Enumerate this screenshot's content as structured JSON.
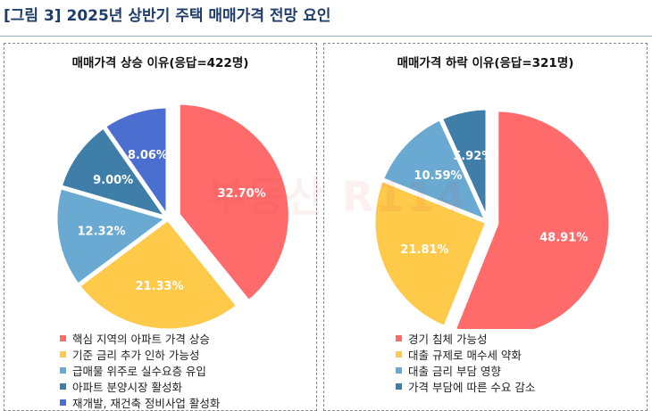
{
  "figure_title": "[그림 3] 2025년 상반기 주택 매매가격 전망 요인",
  "watermark_text": "부동산 R114",
  "chart_data": [
    {
      "type": "pie",
      "title": "매매가격 상승 이유(응답=422명)",
      "labels": [
        "핵심 지역의 아파트 가격 상승",
        "기준 금리 추가 인하 가능성",
        "급매물 위주로 실수요층 유입",
        "아파트 분양시장 활성화",
        "재개발, 재건축 정비사업 활성화"
      ],
      "values": [
        32.7,
        21.33,
        12.32,
        9.0,
        8.06
      ],
      "value_labels": [
        "32.70%",
        "21.33%",
        "12.32%",
        "9.00%",
        "8.06%"
      ],
      "colors": [
        "#ff6b6b",
        "#ffc94a",
        "#6aa9d2",
        "#3f7ea8",
        "#4a6fd0"
      ],
      "legend_position": "bottom"
    },
    {
      "type": "pie",
      "title": "매매가격 하락 이유(응답=321명)",
      "labels": [
        "경기 침체 가능성",
        "대출 규제로 매수세 약화",
        "대출 금리 부담 영향",
        "가격 부담에 따른 수요 감소"
      ],
      "values": [
        48.91,
        21.81,
        10.59,
        5.92
      ],
      "value_labels": [
        "48.91%",
        "21.81%",
        "10.59%",
        "5.92%"
      ],
      "colors": [
        "#ff6b6b",
        "#ffc94a",
        "#6aa9d2",
        "#3f7ea8"
      ],
      "legend_position": "bottom"
    }
  ]
}
